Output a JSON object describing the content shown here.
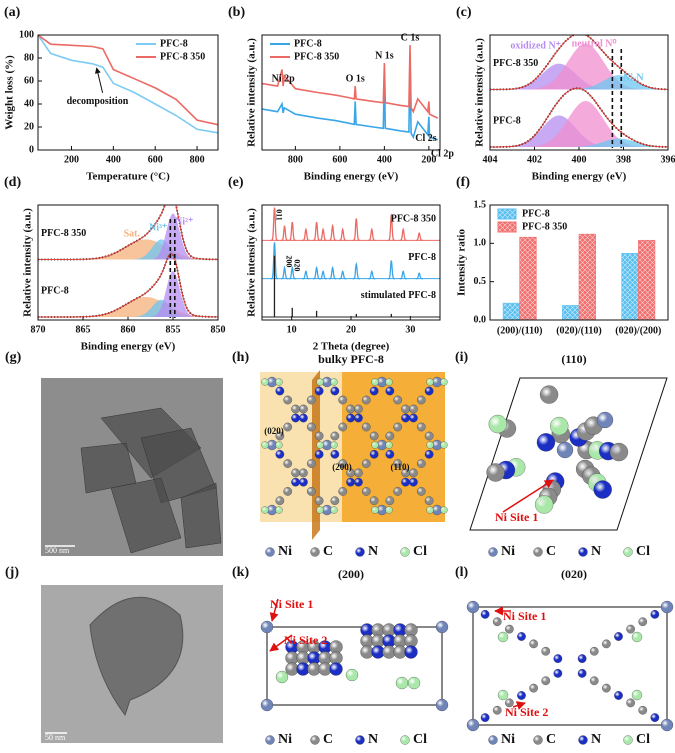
{
  "chart_data": [
    {
      "panel": "(a)",
      "type": "line",
      "xlabel": "Temperature (°C)",
      "ylabel": "Weight loss (%)",
      "x": [
        40,
        100,
        200,
        300,
        350,
        400,
        500,
        600,
        700,
        800,
        900
      ],
      "series": [
        {
          "name": "PFC-8",
          "color": "#7ccbf2",
          "values": [
            100,
            84,
            78,
            75,
            72,
            58,
            50,
            40,
            30,
            18,
            15
          ]
        },
        {
          "name": "PFC-8 350",
          "color": "#ec6a64",
          "values": [
            100,
            92,
            91,
            90,
            88,
            70,
            62,
            54,
            44,
            26,
            22
          ]
        }
      ],
      "xlim": [
        40,
        900
      ],
      "xticks": [
        200,
        400,
        600,
        800
      ],
      "ylim": [
        0,
        100
      ],
      "yticks": [
        0,
        20,
        40,
        60,
        80,
        100
      ],
      "legend": "upper right",
      "annotations": [
        {
          "text": "decomposition",
          "x": 320,
          "y": 74
        }
      ]
    },
    {
      "panel": "(b)",
      "type": "line",
      "xlabel": "Binding energy (eV)",
      "ylabel": "Relative intensity (a.u.)",
      "x": [
        950,
        880,
        860,
        855,
        850,
        800,
        700,
        620,
        560,
        535,
        531,
        527,
        450,
        405,
        400,
        396,
        330,
        290,
        285,
        280,
        270,
        250,
        205,
        200,
        197,
        160
      ],
      "series": [
        {
          "name": "PFC-8",
          "color": "#3aa6e8",
          "values": [
            3.2,
            3.0,
            3.6,
            2.9,
            3.3,
            2.8,
            2.5,
            2.3,
            2.1,
            2.0,
            3.8,
            2.0,
            1.8,
            1.7,
            6.0,
            1.7,
            1.5,
            1.4,
            7.5,
            1.3,
            1.0,
            2.2,
            1.2,
            2.6,
            1.0,
            0.8
          ]
        },
        {
          "name": "PFC-8 350",
          "color": "#ec6a64",
          "values": [
            5.2,
            5.0,
            6.3,
            5.0,
            5.8,
            4.8,
            4.5,
            4.3,
            4.1,
            4.0,
            5.0,
            4.0,
            3.8,
            3.7,
            6.8,
            3.7,
            3.5,
            3.4,
            8.2,
            3.3,
            3.0,
            4.0,
            3.0,
            3.8,
            2.8,
            2.5
          ]
        }
      ],
      "xlim": [
        950,
        150
      ],
      "xticks": [
        800,
        600,
        400,
        200
      ],
      "ylim": [
        0,
        9
      ],
      "legend": "upper left",
      "annotations": [
        {
          "text": "Ni 2p",
          "x": 855
        },
        {
          "text": "O 1s",
          "x": 531
        },
        {
          "text": "N 1s",
          "x": 400
        },
        {
          "text": "C 1s",
          "x": 285
        },
        {
          "text": "Cl 2s",
          "x": 270
        },
        {
          "text": "Cl 2p",
          "x": 200
        }
      ]
    },
    {
      "panel": "(c)",
      "type": "xps",
      "xlabel": "Binding energy (eV)",
      "ylabel": "Relative intensity (a.u.)",
      "xlim": [
        404,
        396
      ],
      "xticks": [
        404,
        402,
        400,
        398,
        396
      ],
      "ylim": [
        0,
        1
      ],
      "fit_color": "#e0403a",
      "components": [
        {
          "name": "oxidized N⁺",
          "color": "#b58cf0",
          "center": 400.9,
          "width": 0.75
        },
        {
          "name": "neutral N⁰",
          "color": "#f08fd0",
          "center": 399.7,
          "width": 0.8
        },
        {
          "name": "Ni-N",
          "color": "#6ec6f0",
          "center": 398.2,
          "width": 0.7
        }
      ],
      "samples": [
        {
          "name": "PFC-8 350",
          "heights": [
            0.45,
            0.8,
            0.25
          ]
        },
        {
          "name": "PFC-8",
          "heights": [
            0.55,
            0.8,
            0.15
          ]
        }
      ],
      "markers": [
        398.5,
        398.1
      ]
    },
    {
      "panel": "(d)",
      "type": "xps",
      "xlabel": "Binding energy (eV)",
      "ylabel": "Relative intensity (a.u.)",
      "xlim": [
        870,
        850
      ],
      "xticks": [
        870,
        865,
        860,
        855,
        850
      ],
      "ylim": [
        0,
        1
      ],
      "fit_color": "#e0403a",
      "components": [
        {
          "name": "Sat.",
          "color": "#f5b07a",
          "center": 858,
          "width": 2.3
        },
        {
          "name": "Ni³⁺",
          "color": "#6ec6f0",
          "center": 856.3,
          "width": 1.0
        },
        {
          "name": "Ni²⁺",
          "color": "#b58cf0",
          "center": 855,
          "width": 0.75
        }
      ],
      "samples": [
        {
          "name": "PFC-8 350",
          "heights": [
            0.35,
            0.35,
            0.8
          ]
        },
        {
          "name": "PFC-8",
          "heights": [
            0.35,
            0.3,
            0.8
          ]
        }
      ],
      "markers": [
        855.3,
        854.8
      ]
    },
    {
      "panel": "(e)",
      "type": "xrd",
      "xlabel": "2 Theta (degree)",
      "ylabel": "Relative intensity (a.u.)",
      "xlim": [
        5,
        35
      ],
      "xticks": [
        10,
        20,
        30
      ],
      "ylim": [
        0,
        1
      ],
      "series": [
        {
          "name": "PFC-8 350",
          "color": "#ec6a64",
          "peaks": [
            7.1,
            8.8,
            10.1,
            12.4,
            14.2,
            15.3,
            16.9,
            18.6,
            20.9,
            23.5,
            26.8,
            28.8,
            31.5
          ],
          "heights": [
            0.9,
            0.4,
            0.5,
            0.3,
            0.5,
            0.3,
            0.4,
            0.3,
            0.6,
            0.3,
            0.7,
            0.3,
            0.2
          ]
        },
        {
          "name": "PFC-8",
          "color": "#3aa6e8",
          "peaks": [
            7.1,
            8.8,
            10.1,
            12.4,
            14.2,
            15.3,
            16.9,
            18.6,
            20.9,
            23.5,
            26.8,
            28.8,
            31.5
          ],
          "heights": [
            1.0,
            0.3,
            0.3,
            0.2,
            0.3,
            0.2,
            0.3,
            0.2,
            0.4,
            0.2,
            0.5,
            0.2,
            0.15
          ]
        },
        {
          "name": "stimulated PFC-8",
          "color": "#222222",
          "style": "stick",
          "peaks": [
            7.1,
            10.1,
            14.2,
            20.9,
            26.8
          ],
          "heights": [
            1.0,
            0.15,
            0.1,
            0.05,
            0.05
          ]
        }
      ],
      "peak_labels": [
        {
          "text": "011",
          "x": 7.1
        },
        {
          "text": "200",
          "x": 8.8
        },
        {
          "text": "020",
          "x": 10.1
        }
      ]
    },
    {
      "panel": "(f)",
      "type": "bar",
      "ylabel": "Intensity ratio",
      "categories": [
        "(200)/(110)",
        "(020)/(110)",
        "(020)/(200)"
      ],
      "series": [
        {
          "name": "PFC-8",
          "color": "#5bc0f0",
          "values": [
            0.22,
            0.19,
            0.87
          ]
        },
        {
          "name": "PFC-8 350",
          "color": "#f07070",
          "values": [
            1.08,
            1.12,
            1.04
          ]
        }
      ],
      "ylim": [
        0,
        1.5
      ],
      "yticks": [
        {
          "value": 0,
          "label": "0.0"
        },
        0.5,
        {
          "value": 1,
          "label": "1.0"
        },
        1.5
      ],
      "legend": "upper left"
    }
  ],
  "atom_colors": [
    "#6f84b8",
    "#8a8a8a",
    "#1c2fc4",
    "#a9e8a9"
  ],
  "images": [
    {
      "panel": "(g)",
      "scale_bar": "500 nm"
    },
    {
      "panel": "(h)",
      "title": "bulky PFC-8",
      "planes": [
        "(020)",
        "(200)",
        "(110)"
      ],
      "legend": [
        "Ni",
        "C",
        "N",
        "Cl"
      ]
    },
    {
      "panel": "(i)",
      "title": "(110)",
      "sites": [
        "Ni Site 1"
      ],
      "legend": [
        "Ni",
        "C",
        "N",
        "Cl"
      ]
    },
    {
      "panel": "(j)",
      "scale_bar": "50 nm"
    },
    {
      "panel": "(k)",
      "title": "(200)",
      "sites": [
        "Ni Site 1",
        "Ni Site 2"
      ],
      "legend": [
        "Ni",
        "C",
        "N",
        "Cl"
      ]
    },
    {
      "panel": "(l)",
      "title": "(020)",
      "sites": [
        "Ni Site 1",
        "Ni Site 2"
      ],
      "legend": [
        "Ni",
        "C",
        "N",
        "Cl"
      ]
    }
  ]
}
